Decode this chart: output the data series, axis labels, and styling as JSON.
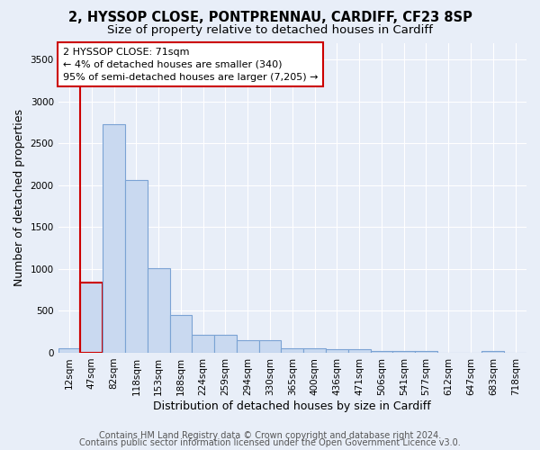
{
  "title_line1": "2, HYSSOP CLOSE, PONTPRENNAU, CARDIFF, CF23 8SP",
  "title_line2": "Size of property relative to detached houses in Cardiff",
  "xlabel": "Distribution of detached houses by size in Cardiff",
  "ylabel": "Number of detached properties",
  "categories": [
    "12sqm",
    "47sqm",
    "82sqm",
    "118sqm",
    "153sqm",
    "188sqm",
    "224sqm",
    "259sqm",
    "294sqm",
    "330sqm",
    "365sqm",
    "400sqm",
    "436sqm",
    "471sqm",
    "506sqm",
    "541sqm",
    "577sqm",
    "612sqm",
    "647sqm",
    "683sqm",
    "718sqm"
  ],
  "values": [
    55,
    840,
    2730,
    2060,
    1010,
    455,
    215,
    215,
    145,
    145,
    55,
    55,
    40,
    40,
    25,
    25,
    25,
    0,
    0,
    25,
    0
  ],
  "bar_color": "#c9d9f0",
  "bar_edge_color": "#7ba3d4",
  "highlight_bar_index": 1,
  "highlight_bar_edge_color": "#cc0000",
  "annotation_box_text": "2 HYSSOP CLOSE: 71sqm\n← 4% of detached houses are smaller (340)\n95% of semi-detached houses are larger (7,205) →",
  "vline_x": 1,
  "ylim": [
    0,
    3700
  ],
  "yticks": [
    0,
    500,
    1000,
    1500,
    2000,
    2500,
    3000,
    3500
  ],
  "footer_line1": "Contains HM Land Registry data © Crown copyright and database right 2024.",
  "footer_line2": "Contains public sector information licensed under the Open Government Licence v3.0.",
  "bg_color": "#e8eef8",
  "grid_color": "#ffffff",
  "title_fontsize": 10.5,
  "subtitle_fontsize": 9.5,
  "axis_label_fontsize": 9,
  "tick_fontsize": 7.5,
  "footer_fontsize": 7
}
